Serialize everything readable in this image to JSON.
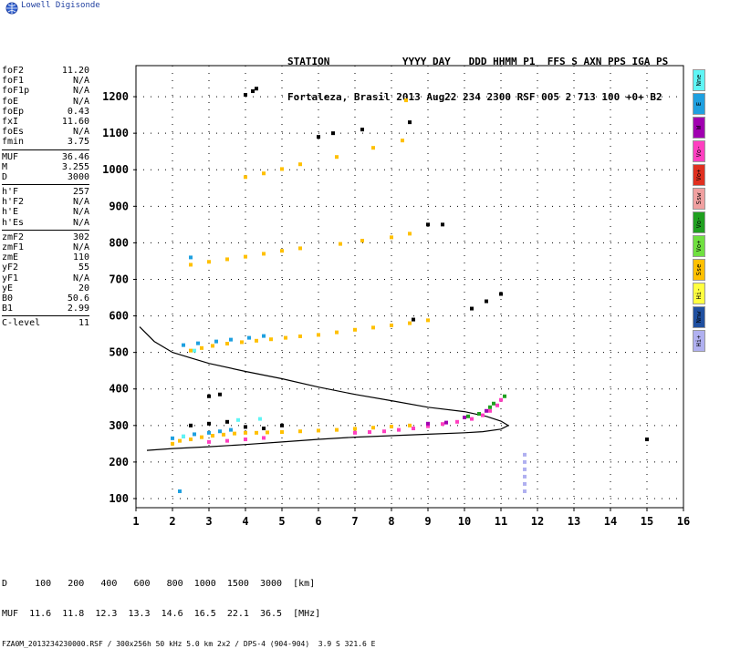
{
  "logo": {
    "text": "Lowell Digisonde"
  },
  "header": {
    "line1": "STATION            YYYY DAY   DDD HHMM P1  FFS S AXN PPS IGA PS",
    "line2": "Fortaleza, Brasil 2013 Aug22 234 2300 RSF 005 2 713 100 +0+ B2"
  },
  "params": [
    {
      "k": "foF2",
      "v": "11.20"
    },
    {
      "k": "foF1",
      "v": "N/A"
    },
    {
      "k": "foF1p",
      "v": "N/A"
    },
    {
      "k": "foE",
      "v": "N/A"
    },
    {
      "k": "foEp",
      "v": "0.43"
    },
    {
      "k": "fxI",
      "v": "11.60"
    },
    {
      "k": "foEs",
      "v": "N/A"
    },
    {
      "k": "fmin",
      "v": "3.75"
    },
    {
      "sep": true
    },
    {
      "k": "MUF",
      "v": "36.46"
    },
    {
      "k": "M",
      "v": "3.255"
    },
    {
      "k": "D",
      "v": "3000"
    },
    {
      "sep": true
    },
    {
      "k": "h'F",
      "v": "257"
    },
    {
      "k": "h'F2",
      "v": "N/A"
    },
    {
      "k": "h'E",
      "v": "N/A"
    },
    {
      "k": "h'Es",
      "v": "N/A"
    },
    {
      "sep": true
    },
    {
      "k": "zmF2",
      "v": "302"
    },
    {
      "k": "zmF1",
      "v": "N/A"
    },
    {
      "k": "zmE",
      "v": "110"
    },
    {
      "k": "yF2",
      "v": "55"
    },
    {
      "k": "yF1",
      "v": "N/A"
    },
    {
      "k": "yE",
      "v": "20"
    },
    {
      "k": "B0",
      "v": "50.6"
    },
    {
      "k": "B1",
      "v": "2.99"
    },
    {
      "sep": true
    },
    {
      "k": "C-level",
      "v": "11"
    }
  ],
  "legend": [
    {
      "label": "Nne",
      "color": "#5ff5f5"
    },
    {
      "label": "E",
      "color": "#1fa0e0"
    },
    {
      "label": "W",
      "color": "#a000b0"
    },
    {
      "label": "Vo-",
      "color": "#ff3fc0"
    },
    {
      "label": "Vo+",
      "color": "#e03020"
    },
    {
      "label": "Ssw",
      "color": "#f0a0a0"
    },
    {
      "label": "Vo-",
      "color": "#20a020"
    },
    {
      "label": "Vo+",
      "color": "#70e040"
    },
    {
      "label": "Sse",
      "color": "#ffc000"
    },
    {
      "label": "Hi-",
      "color": "#ffff40"
    },
    {
      "label": "Nnw",
      "color": "#2050a0"
    },
    {
      "label": "Hi+",
      "color": "#b0b0f0"
    }
  ],
  "footer": {
    "line1": "D     100   200   400   600   800  1000  1500  3000  [km]",
    "line2": "MUF  11.6  11.8  12.3  13.3  14.6  16.5  22.1  36.5  [MHz]",
    "line3": "FZA0M_2013234230000.RSF / 300x256h 50 kHz 5.0 km 2x2 / DPS-4 (904-904)  3.9 S 321.6 E"
  },
  "chart_data": {
    "type": "scatter",
    "title": "",
    "xlabel": "",
    "ylabel": "",
    "xlim": [
      1,
      16
    ],
    "ylim": [
      75,
      1285
    ],
    "x_ticks": [
      "1",
      "2",
      "3",
      "4",
      "5",
      "6",
      "7",
      "8",
      "9",
      "10",
      "11",
      "12",
      "13",
      "14",
      "15",
      "16"
    ],
    "y_ticks": [
      "100",
      "200",
      "300",
      "400",
      "500",
      "600",
      "700",
      "800",
      "900",
      "1000",
      "1100",
      "1200"
    ],
    "grid": true,
    "series": [
      {
        "color": "#ffc000",
        "points": [
          [
            2.0,
            250
          ],
          [
            2.2,
            258
          ],
          [
            2.5,
            262
          ],
          [
            2.8,
            268
          ],
          [
            3.1,
            272
          ],
          [
            3.4,
            275
          ],
          [
            3.7,
            278
          ],
          [
            4.0,
            280
          ],
          [
            4.3,
            280
          ],
          [
            4.6,
            281
          ],
          [
            5.0,
            282
          ],
          [
            5.5,
            284
          ],
          [
            6.0,
            286
          ],
          [
            6.5,
            288
          ],
          [
            7.0,
            291
          ],
          [
            7.5,
            294
          ],
          [
            8.0,
            297
          ],
          [
            8.5,
            300
          ],
          [
            2.5,
            505
          ],
          [
            2.8,
            512
          ],
          [
            3.1,
            518
          ],
          [
            3.5,
            524
          ],
          [
            3.9,
            528
          ],
          [
            4.3,
            532
          ],
          [
            4.7,
            536
          ],
          [
            5.1,
            540
          ],
          [
            5.5,
            544
          ],
          [
            6.0,
            548
          ],
          [
            6.5,
            555
          ],
          [
            7.0,
            562
          ],
          [
            7.5,
            568
          ],
          [
            8.0,
            574
          ],
          [
            8.5,
            580
          ],
          [
            9.0,
            588
          ],
          [
            2.5,
            740
          ],
          [
            3.0,
            748
          ],
          [
            3.5,
            755
          ],
          [
            4.0,
            762
          ],
          [
            4.5,
            770
          ],
          [
            5.0,
            778
          ],
          [
            5.5,
            785
          ],
          [
            6.6,
            797
          ],
          [
            7.2,
            806
          ],
          [
            8.0,
            815
          ],
          [
            8.5,
            825
          ],
          [
            4.0,
            980
          ],
          [
            4.5,
            990
          ],
          [
            5.0,
            1002
          ],
          [
            5.5,
            1015
          ],
          [
            6.5,
            1035
          ],
          [
            7.5,
            1060
          ],
          [
            8.3,
            1080
          ],
          [
            8.4,
            1190
          ]
        ]
      },
      {
        "color": "#1fa0e0",
        "points": [
          [
            2.0,
            265
          ],
          [
            2.3,
            270
          ],
          [
            2.6,
            276
          ],
          [
            3.0,
            280
          ],
          [
            3.3,
            284
          ],
          [
            3.6,
            288
          ],
          [
            2.3,
            520
          ],
          [
            2.7,
            525
          ],
          [
            3.2,
            530
          ],
          [
            3.6,
            535
          ],
          [
            4.1,
            540
          ],
          [
            4.5,
            545
          ],
          [
            2.5,
            760
          ],
          [
            2.2,
            120
          ]
        ]
      },
      {
        "color": "#ff3fc0",
        "points": [
          [
            7.0,
            280
          ],
          [
            7.4,
            282
          ],
          [
            7.8,
            284
          ],
          [
            8.2,
            288
          ],
          [
            8.6,
            292
          ],
          [
            9.0,
            298
          ],
          [
            9.4,
            304
          ],
          [
            9.8,
            310
          ],
          [
            10.2,
            318
          ],
          [
            10.5,
            328
          ],
          [
            10.7,
            340
          ],
          [
            10.9,
            355
          ],
          [
            11.0,
            370
          ],
          [
            3.0,
            255
          ],
          [
            3.5,
            258
          ],
          [
            4.0,
            262
          ],
          [
            4.5,
            266
          ]
        ]
      },
      {
        "color": "#000000",
        "points": [
          [
            2.5,
            300
          ],
          [
            3.0,
            305
          ],
          [
            3.5,
            310
          ],
          [
            4.0,
            296
          ],
          [
            4.5,
            292
          ],
          [
            5.0,
            300
          ],
          [
            3.0,
            380
          ],
          [
            3.3,
            385
          ],
          [
            4.0,
            1205
          ],
          [
            4.2,
            1215
          ],
          [
            4.3,
            1222
          ],
          [
            6.0,
            1090
          ],
          [
            6.4,
            1100
          ],
          [
            7.2,
            1110
          ],
          [
            8.5,
            1130
          ],
          [
            9.4,
            850
          ],
          [
            10.2,
            620
          ],
          [
            10.6,
            640
          ],
          [
            11.0,
            660
          ],
          [
            15.0,
            262
          ],
          [
            9.0,
            850
          ],
          [
            8.6,
            590
          ]
        ]
      },
      {
        "color": "#20a020",
        "points": [
          [
            10.1,
            325
          ],
          [
            10.4,
            332
          ],
          [
            10.8,
            360
          ],
          [
            11.1,
            380
          ],
          [
            10.7,
            350
          ]
        ]
      },
      {
        "color": "#a000b0",
        "points": [
          [
            9.0,
            305
          ],
          [
            9.5,
            308
          ],
          [
            10.0,
            322
          ],
          [
            10.6,
            340
          ]
        ]
      },
      {
        "color": "#5ff5f5",
        "points": [
          [
            3.8,
            315
          ],
          [
            4.4,
            318
          ],
          [
            2.3,
            270
          ],
          [
            2.6,
            505
          ]
        ]
      },
      {
        "color": "#b0b0f0",
        "points": [
          [
            11.65,
            120
          ],
          [
            11.65,
            140
          ],
          [
            11.65,
            160
          ],
          [
            11.65,
            180
          ],
          [
            11.65,
            200
          ],
          [
            11.65,
            220
          ]
        ]
      }
    ],
    "curves": [
      {
        "color": "#000000",
        "name": "",
        "points": [
          [
            1.1,
            570
          ],
          [
            1.5,
            530
          ],
          [
            2.0,
            500
          ],
          [
            2.5,
            485
          ],
          [
            3.0,
            470
          ],
          [
            4.0,
            448
          ],
          [
            5.0,
            428
          ],
          [
            6.0,
            405
          ],
          [
            7.0,
            385
          ],
          [
            8.0,
            368
          ],
          [
            9.0,
            350
          ],
          [
            10.0,
            338
          ],
          [
            10.6,
            325
          ],
          [
            11.0,
            312
          ],
          [
            11.2,
            300
          ],
          [
            11.0,
            290
          ],
          [
            10.5,
            283
          ],
          [
            10.0,
            280
          ],
          [
            9.0,
            276
          ],
          [
            8.0,
            272
          ],
          [
            7.0,
            268
          ],
          [
            6.0,
            262
          ],
          [
            5.0,
            255
          ],
          [
            4.0,
            248
          ],
          [
            3.0,
            242
          ],
          [
            2.0,
            237
          ],
          [
            1.3,
            232
          ]
        ]
      }
    ]
  }
}
